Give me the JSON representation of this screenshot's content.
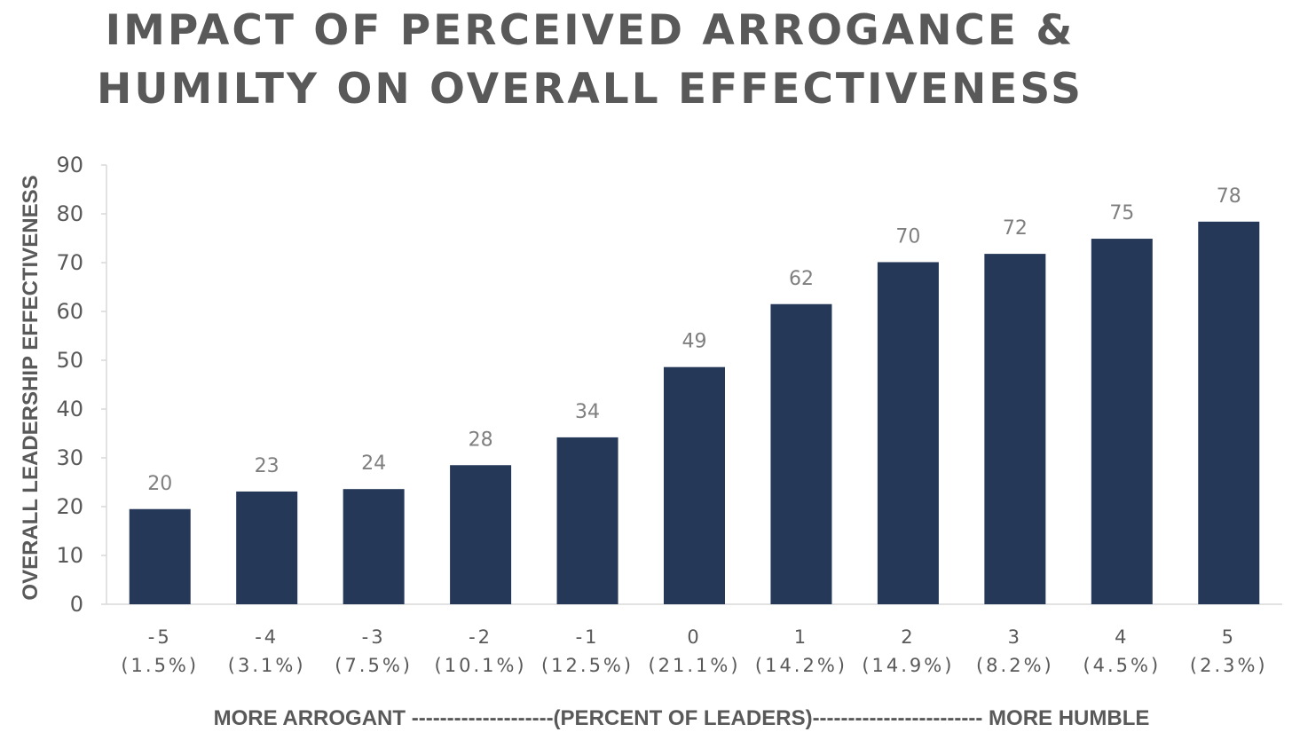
{
  "chart_data": {
    "type": "bar",
    "title_lines": [
      "IMPACT OF PERCEIVED ARROGANCE &",
      "HUMILTY ON OVERALL EFFECTIVENESS"
    ],
    "ylabel": "OVERALL LEADERSHIP EFFECTIVENESS",
    "xlabel": "MORE ARROGANT --------------------(PERCENT OF LEADERS)------------------------ MORE HUMBLE",
    "categories": [
      "-5",
      "-4",
      "-3",
      "-2",
      "-1",
      "0",
      "1",
      "2",
      "3",
      "4",
      "5"
    ],
    "category_sublabels": [
      "(1.5%)",
      "(3.1%)",
      "(7.5%)",
      "(10.1%)",
      "(12.5%)",
      "(21.1%)",
      "(14.2%)",
      "(14.9%)",
      "(8.2%)",
      "(4.5%)",
      "(2.3%)"
    ],
    "values": [
      19.5,
      23.1,
      23.6,
      28.5,
      34.2,
      48.6,
      61.5,
      70.1,
      71.8,
      74.9,
      78.4
    ],
    "data_labels": [
      "20",
      "23",
      "24",
      "28",
      "34",
      "49",
      "62",
      "70",
      "72",
      "75",
      "78"
    ],
    "ylim": [
      0,
      90
    ],
    "yticks": [
      0,
      10,
      20,
      30,
      40,
      50,
      60,
      70,
      80,
      90
    ],
    "grid": false,
    "legend": "none",
    "bar_color": "#253858",
    "text_color": "#595959",
    "data_label_color": "#7f7f7f",
    "axis_color": "#d9d9d9"
  }
}
